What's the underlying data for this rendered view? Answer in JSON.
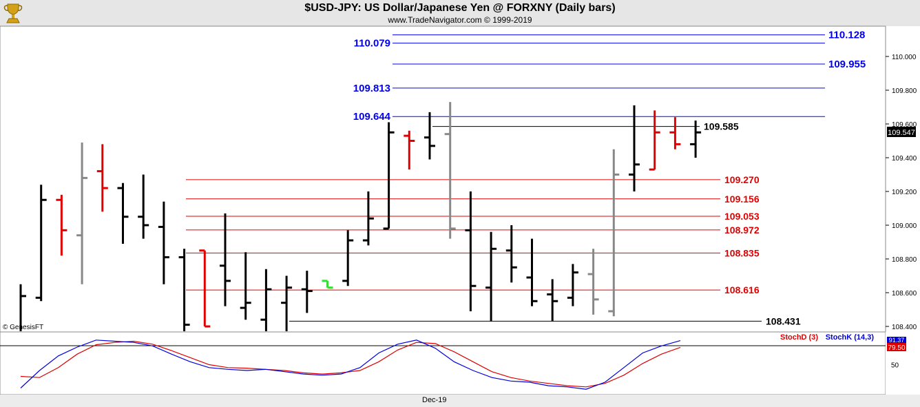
{
  "header": {
    "title": "$USD-JPY:  US Dollar/Japanese Yen @ FORXNY  (Daily bars)",
    "subtitle": "www.TradeNavigator.com © 1999-2019",
    "credit": "© GenesisFT"
  },
  "chart_data": [
    {
      "type": "ohlc",
      "ylim": [
        108.36,
        110.2
      ],
      "yticks": [
        "108.400",
        "108.600",
        "108.800",
        "109.000",
        "109.200",
        "109.400",
        "109.600",
        "109.800",
        "110.000"
      ],
      "last_price_label": "109.547",
      "grid": false,
      "bars": [
        {
          "o": 108.3,
          "h": 108.65,
          "l": 108.2,
          "c": 108.58,
          "color": "black"
        },
        {
          "o": 108.57,
          "h": 109.24,
          "l": 108.55,
          "c": 109.15,
          "color": "black"
        },
        {
          "o": 109.15,
          "h": 109.18,
          "l": 108.82,
          "c": 108.97,
          "color": "red"
        },
        {
          "o": 108.94,
          "h": 109.49,
          "l": 108.65,
          "c": 109.28,
          "color": "gray"
        },
        {
          "o": 109.32,
          "h": 109.48,
          "l": 109.08,
          "c": 109.22,
          "color": "red"
        },
        {
          "o": 109.22,
          "h": 109.25,
          "l": 108.89,
          "c": 109.05,
          "color": "black"
        },
        {
          "o": 109.05,
          "h": 109.3,
          "l": 108.92,
          "c": 109.0,
          "color": "black"
        },
        {
          "o": 108.99,
          "h": 109.14,
          "l": 108.65,
          "c": 108.81,
          "color": "black"
        },
        {
          "o": 108.81,
          "h": 108.86,
          "l": 108.37,
          "c": 108.41,
          "color": "black"
        },
        {
          "o": 108.85,
          "h": 108.85,
          "l": 108.4,
          "c": 108.4,
          "color": "red"
        },
        {
          "o": 108.76,
          "h": 109.07,
          "l": 108.52,
          "c": 108.67,
          "color": "black"
        },
        {
          "o": 108.51,
          "h": 108.84,
          "l": 108.44,
          "c": 108.54,
          "color": "black"
        },
        {
          "o": 108.44,
          "h": 108.74,
          "l": 108.37,
          "c": 108.62,
          "color": "black"
        },
        {
          "o": 108.54,
          "h": 108.7,
          "l": 108.37,
          "c": 108.63,
          "color": "black"
        },
        {
          "o": 108.62,
          "h": 108.73,
          "l": 108.48,
          "c": 108.61,
          "color": "black"
        },
        {
          "o": 108.67,
          "h": 108.67,
          "l": 108.63,
          "c": 108.63,
          "color": "green"
        },
        {
          "o": 108.67,
          "h": 108.97,
          "l": 108.64,
          "c": 108.91,
          "color": "black"
        },
        {
          "o": 108.91,
          "h": 109.2,
          "l": 108.88,
          "c": 109.04,
          "color": "black"
        },
        {
          "o": 108.98,
          "h": 109.61,
          "l": 108.98,
          "c": 109.55,
          "color": "black"
        },
        {
          "o": 109.53,
          "h": 109.56,
          "l": 109.33,
          "c": 109.5,
          "color": "red"
        },
        {
          "o": 109.52,
          "h": 109.67,
          "l": 109.39,
          "c": 109.47,
          "color": "black"
        },
        {
          "o": 109.54,
          "h": 109.73,
          "l": 108.92,
          "c": 108.98,
          "color": "gray"
        },
        {
          "o": 108.97,
          "h": 109.2,
          "l": 108.49,
          "c": 108.64,
          "color": "black"
        },
        {
          "o": 108.63,
          "h": 108.96,
          "l": 108.43,
          "c": 108.86,
          "color": "black"
        },
        {
          "o": 108.85,
          "h": 109.0,
          "l": 108.66,
          "c": 108.75,
          "color": "black"
        },
        {
          "o": 108.69,
          "h": 108.92,
          "l": 108.52,
          "c": 108.55,
          "color": "black"
        },
        {
          "o": 108.59,
          "h": 108.68,
          "l": 108.43,
          "c": 108.55,
          "color": "black"
        },
        {
          "o": 108.57,
          "h": 108.77,
          "l": 108.52,
          "c": 108.72,
          "color": "black"
        },
        {
          "o": 108.71,
          "h": 108.86,
          "l": 108.47,
          "c": 108.56,
          "color": "gray"
        },
        {
          "o": 108.49,
          "h": 109.45,
          "l": 108.46,
          "c": 109.3,
          "color": "gray"
        },
        {
          "o": 109.3,
          "h": 109.71,
          "l": 109.2,
          "c": 109.36,
          "color": "black"
        },
        {
          "o": 109.33,
          "h": 109.68,
          "l": 109.33,
          "c": 109.55,
          "color": "red"
        },
        {
          "o": 109.55,
          "h": 109.64,
          "l": 109.45,
          "c": 109.48,
          "color": "red"
        },
        {
          "o": 109.48,
          "h": 109.62,
          "l": 109.4,
          "c": 109.55,
          "color": "black"
        }
      ],
      "levels": [
        {
          "label": "110.128",
          "value": 110.128,
          "color": "#0000ee",
          "side": "right"
        },
        {
          "label": "110.079",
          "value": 110.079,
          "color": "#0000ee",
          "side": "left"
        },
        {
          "label": "109.955",
          "value": 109.955,
          "color": "#0000ee",
          "side": "right"
        },
        {
          "label": "109.813",
          "value": 109.813,
          "color": "#0000ee",
          "side": "left"
        },
        {
          "label": "109.644",
          "value": 109.644,
          "color": "#0000ee",
          "side": "left"
        },
        {
          "label": "109.585",
          "value": 109.585,
          "color": "#000000",
          "side": "right"
        },
        {
          "label": "109.270",
          "value": 109.27,
          "color": "#e00000",
          "side": "right"
        },
        {
          "label": "109.156",
          "value": 109.156,
          "color": "#e00000",
          "side": "right"
        },
        {
          "label": "109.053",
          "value": 109.053,
          "color": "#e00000",
          "side": "right"
        },
        {
          "label": "108.972",
          "value": 108.972,
          "color": "#e00000",
          "side": "right"
        },
        {
          "label": "108.835",
          "value": 108.835,
          "color": "#e00000",
          "side": "right"
        },
        {
          "label": "108.616",
          "value": 108.616,
          "color": "#e00000",
          "side": "right"
        },
        {
          "label": "108.431",
          "value": 108.431,
          "color": "#000000",
          "side": "right"
        }
      ]
    },
    {
      "type": "line",
      "ylim": [
        0,
        100
      ],
      "yticks": [
        "50"
      ],
      "xlabel": "Dec-19",
      "legend": [
        "StochD (3)",
        "StochK (14,3)"
      ],
      "last_values": {
        "k": "91.37",
        "d": "79.50"
      },
      "series": [
        {
          "name": "StochK (14,3)",
          "color": "#0000dd",
          "values": [
            10,
            40,
            65,
            80,
            92,
            90,
            88,
            82,
            68,
            55,
            45,
            42,
            40,
            42,
            38,
            34,
            32,
            34,
            45,
            70,
            85,
            92,
            78,
            55,
            40,
            28,
            22,
            20,
            14,
            12,
            8,
            20,
            45,
            70,
            82,
            91
          ]
        },
        {
          "name": "StochD (3)",
          "color": "#dd0000",
          "values": [
            30,
            28,
            45,
            68,
            84,
            88,
            90,
            85,
            74,
            62,
            50,
            45,
            44,
            42,
            40,
            36,
            34,
            36,
            40,
            55,
            75,
            88,
            86,
            72,
            55,
            38,
            28,
            22,
            18,
            14,
            12,
            18,
            32,
            52,
            68,
            79.5
          ]
        }
      ]
    }
  ]
}
